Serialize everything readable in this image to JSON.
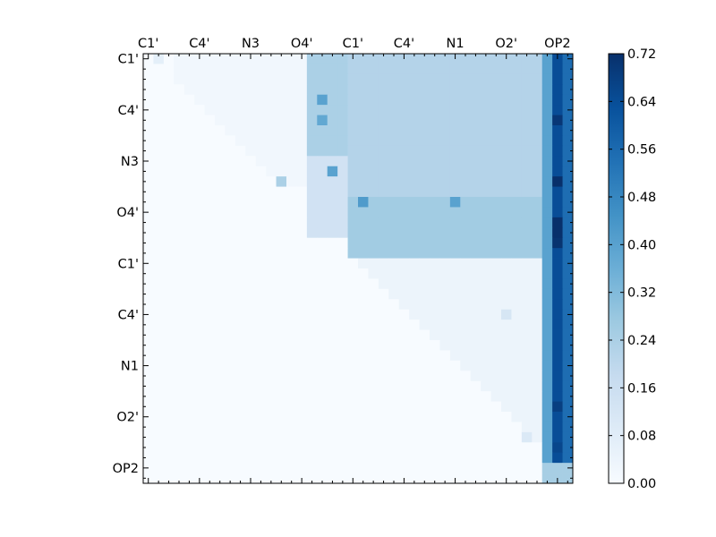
{
  "chart_data": {
    "type": "heatmap",
    "title": "",
    "xlabel": "",
    "ylabel": "",
    "x_tick_labels": [
      "C1'",
      "C4'",
      "N3",
      "O4'",
      "C1'",
      "C4'",
      "N1",
      "O2'",
      "OP2"
    ],
    "y_tick_labels": [
      "C1'",
      "C4'",
      "N3",
      "O4'",
      "C1'",
      "C4'",
      "N1",
      "O2'",
      "OP2"
    ],
    "tick_positions": [
      0.5,
      5.5,
      10.5,
      15.5,
      20.5,
      25.5,
      30.5,
      35.5,
      40.5
    ],
    "matrix_size": 42,
    "colormap": "Blues",
    "colorbar": {
      "min": 0.0,
      "max": 0.72,
      "tick_labels": [
        "0.00",
        "0.08",
        "0.16",
        "0.24",
        "0.32",
        "0.40",
        "0.48",
        "0.56",
        "0.64",
        "0.72"
      ]
    },
    "grid": false,
    "regions": [
      {
        "rows": [
          0,
          1
        ],
        "cols": [
          1,
          2
        ],
        "value": 0.07
      },
      {
        "rows": [
          0,
          13
        ],
        "cols": [
          3,
          16
        ],
        "value": 0.02,
        "note": "upper triangle only"
      },
      {
        "rows": [
          0,
          10
        ],
        "cols": [
          16,
          20
        ],
        "value": 0.24
      },
      {
        "rows": [
          10,
          18
        ],
        "cols": [
          16,
          20
        ],
        "value": 0.14
      },
      {
        "rows": [
          0,
          20
        ],
        "cols": [
          20,
          39
        ],
        "value": 0.22
      },
      {
        "rows": [
          14,
          20
        ],
        "cols": [
          20,
          39
        ],
        "value": 0.26
      },
      {
        "rows": [
          20,
          40
        ],
        "cols": [
          21,
          39
        ],
        "value": 0.04,
        "note": "upper triangle only"
      },
      {
        "rows": [
          0,
          40
        ],
        "cols": [
          39,
          40
        ],
        "value": 0.4
      },
      {
        "rows": [
          0,
          40
        ],
        "cols": [
          40,
          41
        ],
        "value": 0.64
      },
      {
        "rows": [
          0,
          40
        ],
        "cols": [
          41,
          42
        ],
        "value": 0.55
      },
      {
        "rows": [
          40,
          42
        ],
        "cols": [
          39,
          42
        ],
        "value": 0.25
      }
    ],
    "cells": [
      {
        "r": 12,
        "c": 40,
        "value": 0.72
      },
      {
        "r": 6,
        "c": 40,
        "value": 0.7
      },
      {
        "r": 16,
        "c": 40,
        "value": 0.72
      },
      {
        "r": 17,
        "c": 40,
        "value": 0.72
      },
      {
        "r": 18,
        "c": 40,
        "value": 0.71
      },
      {
        "r": 34,
        "c": 40,
        "value": 0.68
      },
      {
        "r": 38,
        "c": 40,
        "value": 0.66
      },
      {
        "r": 4,
        "c": 17,
        "value": 0.4
      },
      {
        "r": 6,
        "c": 17,
        "value": 0.38
      },
      {
        "r": 11,
        "c": 18,
        "value": 0.4
      },
      {
        "r": 14,
        "c": 21,
        "value": 0.42
      },
      {
        "r": 14,
        "c": 30,
        "value": 0.4
      },
      {
        "r": 12,
        "c": 13,
        "value": 0.24
      },
      {
        "r": 25,
        "c": 35,
        "value": 0.12
      },
      {
        "r": 37,
        "c": 37,
        "value": 0.1
      }
    ]
  }
}
